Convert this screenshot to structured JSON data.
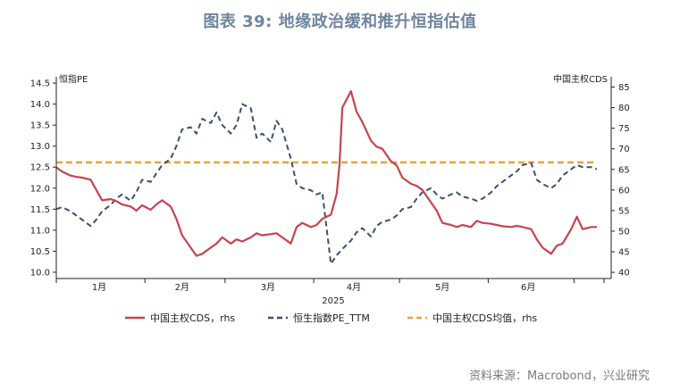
{
  "title": "图表 39: 地缘政治缓和推升恒指估值",
  "source": "资料来源：Macrobond，兴业研究",
  "colors": {
    "cds": "#c8434f",
    "pe": "#3d4f6e",
    "avg": "#eda23a"
  },
  "chart_data": {
    "type": "line",
    "year_label": "2025",
    "x_ticks": [
      "1月",
      "2月",
      "3月",
      "4月",
      "5月",
      "6月"
    ],
    "left_axis": {
      "title": "恒指PE",
      "ylim": [
        9.85,
        14.65
      ],
      "ticks": [
        "14.5",
        "14.0",
        "13.5",
        "13.0",
        "12.5",
        "12.0",
        "11.5",
        "11.0",
        "10.5",
        "10.0"
      ]
    },
    "right_axis": {
      "title": "中国主权CDS",
      "ylim": [
        38.5,
        87.5
      ],
      "ticks": [
        "85",
        "80",
        "75",
        "70",
        "65",
        "60",
        "55",
        "50",
        "45",
        "40"
      ]
    },
    "series": [
      {
        "name": "中国主权CDS，rhs",
        "axis": "right",
        "style": "solid",
        "points": [
          [
            "2025-01-01",
            65.5
          ],
          [
            "2025-01-03",
            64.5
          ],
          [
            "2025-01-06",
            63.5
          ],
          [
            "2025-01-08",
            63.2
          ],
          [
            "2025-01-10",
            63
          ],
          [
            "2025-01-13",
            62.5
          ],
          [
            "2025-01-15",
            60
          ],
          [
            "2025-01-17",
            57.5
          ],
          [
            "2025-01-20",
            57.8
          ],
          [
            "2025-01-22",
            57.3
          ],
          [
            "2025-01-24",
            56.5
          ],
          [
            "2025-01-27",
            56
          ],
          [
            "2025-01-29",
            55
          ],
          [
            "2025-01-31",
            56.3
          ],
          [
            "2025-02-03",
            55.2
          ],
          [
            "2025-02-05",
            56.5
          ],
          [
            "2025-02-07",
            57.5
          ],
          [
            "2025-02-10",
            56
          ],
          [
            "2025-02-12",
            53
          ],
          [
            "2025-02-14",
            49
          ],
          [
            "2025-02-17",
            46
          ],
          [
            "2025-02-19",
            44
          ],
          [
            "2025-02-21",
            44.5
          ],
          [
            "2025-02-24",
            46
          ],
          [
            "2025-02-26",
            47
          ],
          [
            "2025-02-28",
            48.5
          ],
          [
            "2025-03-03",
            47
          ],
          [
            "2025-03-05",
            48
          ],
          [
            "2025-03-07",
            47.5
          ],
          [
            "2025-03-10",
            48.5
          ],
          [
            "2025-03-12",
            49.5
          ],
          [
            "2025-03-14",
            49
          ],
          [
            "2025-03-17",
            49.3
          ],
          [
            "2025-03-19",
            49.5
          ],
          [
            "2025-03-21",
            48.5
          ],
          [
            "2025-03-24",
            47
          ],
          [
            "2025-03-26",
            51
          ],
          [
            "2025-03-28",
            52
          ],
          [
            "2025-03-31",
            51
          ],
          [
            "2025-04-02",
            51.5
          ],
          [
            "2025-04-04",
            53
          ],
          [
            "2025-04-07",
            54
          ],
          [
            "2025-04-09",
            59
          ],
          [
            "2025-04-10",
            66
          ],
          [
            "2025-04-11",
            80
          ],
          [
            "2025-04-14",
            84
          ],
          [
            "2025-04-16",
            79
          ],
          [
            "2025-04-18",
            76.5
          ],
          [
            "2025-04-21",
            72
          ],
          [
            "2025-04-23",
            70.5
          ],
          [
            "2025-04-25",
            70
          ],
          [
            "2025-04-28",
            67
          ],
          [
            "2025-04-30",
            66
          ],
          [
            "2025-05-02",
            63
          ],
          [
            "2025-05-05",
            61.5
          ],
          [
            "2025-05-07",
            61
          ],
          [
            "2025-05-09",
            60
          ],
          [
            "2025-05-12",
            57
          ],
          [
            "2025-05-14",
            55
          ],
          [
            "2025-05-16",
            52
          ],
          [
            "2025-05-19",
            51.5
          ],
          [
            "2025-05-21",
            51
          ],
          [
            "2025-05-23",
            51.5
          ],
          [
            "2025-05-26",
            51
          ],
          [
            "2025-05-28",
            52.5
          ],
          [
            "2025-05-30",
            52
          ],
          [
            "2025-06-02",
            51.8
          ],
          [
            "2025-06-04",
            51.5
          ],
          [
            "2025-06-06",
            51.2
          ],
          [
            "2025-06-09",
            51
          ],
          [
            "2025-06-11",
            51.3
          ],
          [
            "2025-06-13",
            51
          ],
          [
            "2025-06-16",
            50.5
          ],
          [
            "2025-06-18",
            48
          ],
          [
            "2025-06-20",
            46
          ],
          [
            "2025-06-23",
            44.5
          ],
          [
            "2025-06-25",
            46.5
          ],
          [
            "2025-06-27",
            47
          ],
          [
            "2025-06-30",
            50.5
          ],
          [
            "2025-07-02",
            53.5
          ],
          [
            "2025-07-04",
            50.5
          ],
          [
            "2025-07-07",
            51
          ],
          [
            "2025-07-09",
            51
          ]
        ]
      },
      {
        "name": "恒生指数PE_TTM",
        "axis": "left",
        "style": "dashed",
        "points": [
          [
            "2025-01-01",
            11.5
          ],
          [
            "2025-01-03",
            11.55
          ],
          [
            "2025-01-06",
            11.45
          ],
          [
            "2025-01-08",
            11.35
          ],
          [
            "2025-01-10",
            11.25
          ],
          [
            "2025-01-13",
            11.1
          ],
          [
            "2025-01-15",
            11.25
          ],
          [
            "2025-01-17",
            11.45
          ],
          [
            "2025-01-20",
            11.6
          ],
          [
            "2025-01-22",
            11.75
          ],
          [
            "2025-01-24",
            11.85
          ],
          [
            "2025-01-27",
            11.7
          ],
          [
            "2025-01-29",
            11.9
          ],
          [
            "2025-01-31",
            12.2
          ],
          [
            "2025-02-03",
            12.15
          ],
          [
            "2025-02-05",
            12.35
          ],
          [
            "2025-02-07",
            12.55
          ],
          [
            "2025-02-10",
            12.7
          ],
          [
            "2025-02-12",
            13.0
          ],
          [
            "2025-02-14",
            13.4
          ],
          [
            "2025-02-17",
            13.45
          ],
          [
            "2025-02-19",
            13.3
          ],
          [
            "2025-02-21",
            13.65
          ],
          [
            "2025-02-24",
            13.55
          ],
          [
            "2025-02-26",
            13.8
          ],
          [
            "2025-02-28",
            13.5
          ],
          [
            "2025-03-03",
            13.3
          ],
          [
            "2025-03-05",
            13.5
          ],
          [
            "2025-03-07",
            14.0
          ],
          [
            "2025-03-10",
            13.9
          ],
          [
            "2025-03-12",
            13.2
          ],
          [
            "2025-03-14",
            13.3
          ],
          [
            "2025-03-17",
            13.1
          ],
          [
            "2025-03-19",
            13.6
          ],
          [
            "2025-03-21",
            13.4
          ],
          [
            "2025-03-24",
            12.7
          ],
          [
            "2025-03-26",
            12.1
          ],
          [
            "2025-03-28",
            12.0
          ],
          [
            "2025-03-31",
            11.95
          ],
          [
            "2025-04-02",
            11.85
          ],
          [
            "2025-04-04",
            11.9
          ],
          [
            "2025-04-07",
            10.2
          ],
          [
            "2025-04-09",
            10.4
          ],
          [
            "2025-04-11",
            10.55
          ],
          [
            "2025-04-14",
            10.75
          ],
          [
            "2025-04-16",
            10.95
          ],
          [
            "2025-04-18",
            11.05
          ],
          [
            "2025-04-21",
            10.85
          ],
          [
            "2025-04-23",
            11.1
          ],
          [
            "2025-04-25",
            11.2
          ],
          [
            "2025-04-28",
            11.25
          ],
          [
            "2025-04-30",
            11.35
          ],
          [
            "2025-05-02",
            11.5
          ],
          [
            "2025-05-05",
            11.55
          ],
          [
            "2025-05-07",
            11.75
          ],
          [
            "2025-05-09",
            11.9
          ],
          [
            "2025-05-12",
            12.0
          ],
          [
            "2025-05-14",
            11.85
          ],
          [
            "2025-05-16",
            11.75
          ],
          [
            "2025-05-19",
            11.85
          ],
          [
            "2025-05-21",
            11.9
          ],
          [
            "2025-05-23",
            11.8
          ],
          [
            "2025-05-26",
            11.75
          ],
          [
            "2025-05-28",
            11.7
          ],
          [
            "2025-05-30",
            11.75
          ],
          [
            "2025-06-02",
            11.9
          ],
          [
            "2025-06-04",
            12.05
          ],
          [
            "2025-06-06",
            12.15
          ],
          [
            "2025-06-09",
            12.3
          ],
          [
            "2025-06-11",
            12.4
          ],
          [
            "2025-06-13",
            12.55
          ],
          [
            "2025-06-16",
            12.6
          ],
          [
            "2025-06-18",
            12.2
          ],
          [
            "2025-06-20",
            12.1
          ],
          [
            "2025-06-23",
            12.0
          ],
          [
            "2025-06-25",
            12.1
          ],
          [
            "2025-06-27",
            12.3
          ],
          [
            "2025-06-30",
            12.45
          ],
          [
            "2025-07-02",
            12.55
          ],
          [
            "2025-07-04",
            12.5
          ],
          [
            "2025-07-07",
            12.5
          ],
          [
            "2025-07-09",
            12.45
          ]
        ]
      },
      {
        "name": "中国主权CDS均值，rhs",
        "axis": "right",
        "style": "dashed-orange",
        "points": [
          [
            "2025-01-01",
            66.7
          ],
          [
            "2025-07-09",
            66.7
          ]
        ]
      }
    ],
    "legend": "bottom"
  }
}
